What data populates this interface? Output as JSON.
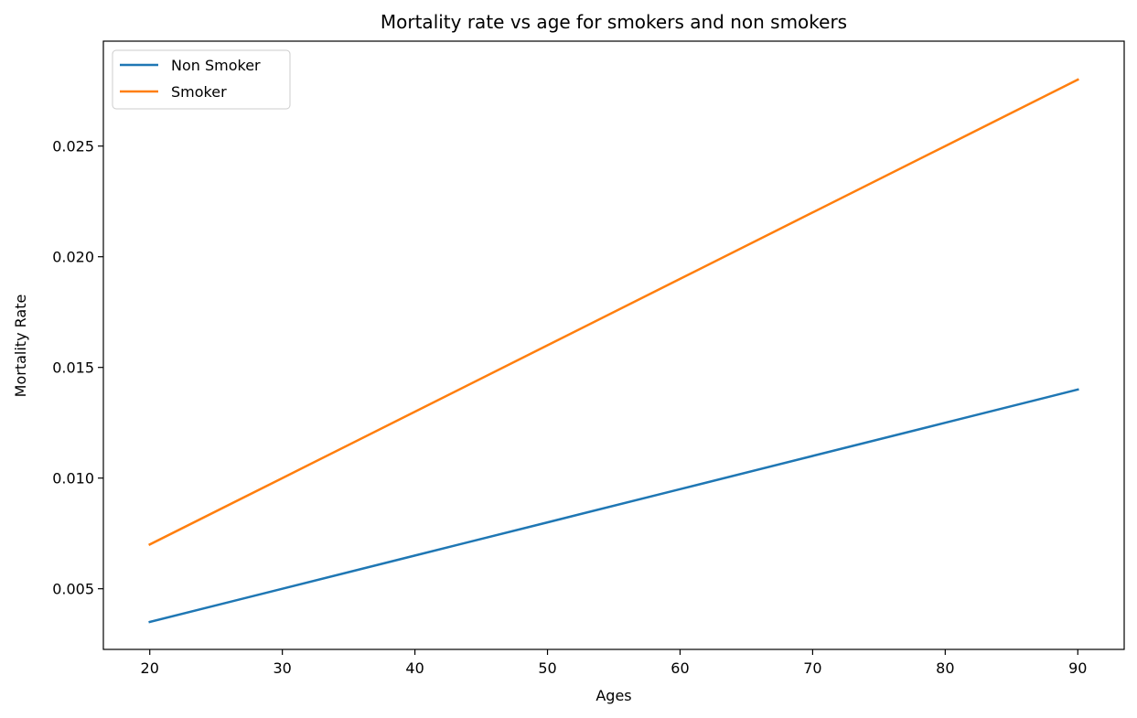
{
  "chart_data": {
    "type": "line",
    "title": "Mortality rate vs age for smokers and non smokers",
    "xlabel": "Ages",
    "ylabel": "Mortality Rate",
    "x": [
      20,
      30,
      40,
      50,
      60,
      70,
      80,
      90
    ],
    "xlim": [
      16.5,
      93.5
    ],
    "ylim": [
      0.00226,
      0.02974
    ],
    "xticks": [
      20,
      30,
      40,
      50,
      60,
      70,
      80,
      90
    ],
    "yticks": [
      0.005,
      0.01,
      0.015,
      0.02,
      0.025
    ],
    "ytick_labels": [
      "0.005",
      "0.010",
      "0.015",
      "0.020",
      "0.025"
    ],
    "grid": false,
    "legend_position": "top-left",
    "series": [
      {
        "name": "Non Smoker",
        "color": "#1f77b4",
        "values": [
          0.0035,
          0.005,
          0.0065,
          0.008,
          0.0095,
          0.011,
          0.0125,
          0.014
        ]
      },
      {
        "name": "Smoker",
        "color": "#ff7f0e",
        "values": [
          0.007,
          0.01,
          0.013,
          0.016,
          0.019,
          0.022,
          0.025,
          0.028
        ]
      }
    ]
  }
}
